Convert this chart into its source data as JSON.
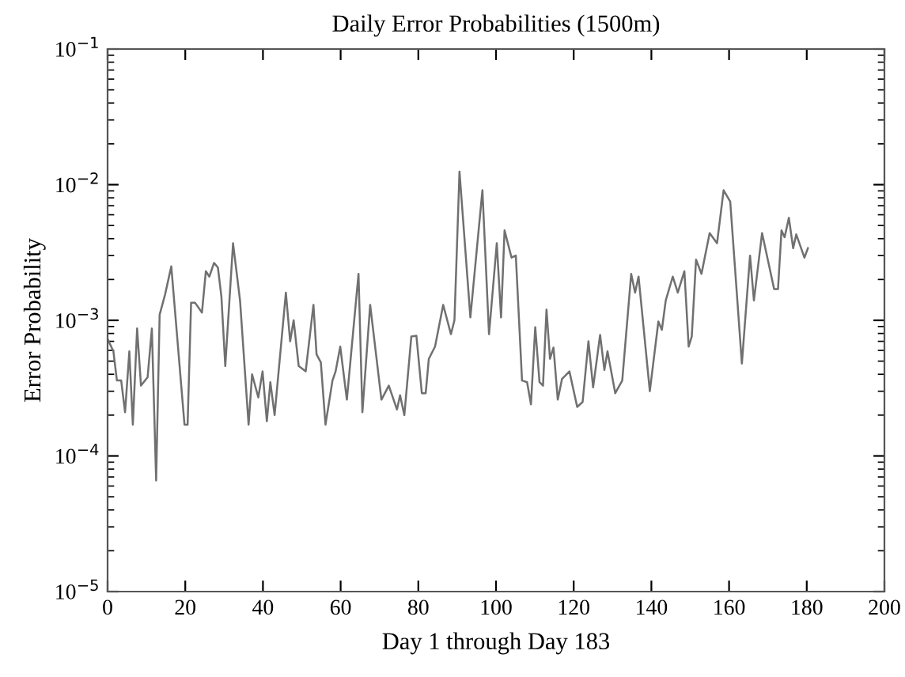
{
  "chart_data": {
    "type": "line",
    "title": "Daily Error Probabilities (1500m)",
    "xlabel": "Day 1 through Day 183",
    "ylabel": "Error Probability",
    "log": "y",
    "grid": false,
    "marker": "none",
    "line_style": "solid",
    "xlim": [
      0,
      200
    ],
    "xticks": [
      0,
      20,
      40,
      60,
      80,
      100,
      120,
      140,
      160,
      180,
      200
    ],
    "ylim": [
      1e-05,
      0.1
    ],
    "yticks": [
      {
        "value": 1e-05,
        "label": "10$^{−5}$"
      },
      {
        "value": 0.0001,
        "label": "10$^{−4}$"
      },
      {
        "value": 0.001,
        "label": "10$^{−3}$"
      },
      {
        "value": 0.01,
        "label": "10$^{−2}$"
      },
      {
        "value": 0.1,
        "label": "10$^{−1}$"
      }
    ],
    "series": [
      {
        "color": "#707070",
        "x": [
          0,
          1.5,
          2.4,
          3.5,
          4.5,
          5.6,
          6.5,
          7.6,
          8.6,
          10.3,
          11.4,
          12.5,
          13.4,
          14.8,
          16.4,
          19.8,
          20.6,
          21.5,
          22.5,
          24.3,
          25.3,
          26.2,
          27.4,
          28.4,
          29.3,
          30.3,
          32.3,
          34.1,
          36.3,
          37.2,
          38.8,
          39.9,
          41.0,
          41.9,
          43.0,
          45.9,
          47.0,
          47.9,
          49.2,
          51.0,
          53.0,
          53.8,
          54.9,
          56.1,
          57.9,
          58.7,
          59.9,
          61.6,
          64.6,
          65.6,
          67.6,
          70.5,
          72.4,
          74.5,
          75.3,
          76.4,
          78.2,
          79.5,
          80.9,
          81.9,
          82.7,
          84.3,
          86.4,
          88.4,
          89.3,
          90.6,
          93.4,
          96.5,
          98.2,
          100.2,
          101.3,
          102.2,
          104.0,
          105.1,
          106.7,
          108.0,
          109.0,
          110.1,
          111.2,
          112.1,
          113.0,
          113.9,
          114.8,
          115.9,
          117.0,
          118.9,
          120.9,
          122.3,
          123.8,
          125.0,
          126.8,
          127.9,
          128.7,
          130.7,
          132.5,
          134.8,
          135.8,
          136.7,
          139.6,
          141.8,
          142.7,
          143.7,
          145.5,
          146.8,
          148.5,
          149.6,
          150.4,
          151.5,
          152.9,
          155.0,
          156.9,
          158.6,
          160.3,
          163.3,
          165.4,
          166.4,
          168.5,
          171.6,
          172.6,
          173.5,
          174.3,
          175.4,
          176.5,
          177.3,
          179.4,
          180.3
        ],
        "values": [
          0.00073,
          0.00059,
          0.00036,
          0.00036,
          0.00021,
          0.00059,
          0.00017,
          0.00087,
          0.00033,
          0.00038,
          0.00087,
          6.6e-05,
          0.0011,
          0.00155,
          0.0025,
          0.00017,
          0.00017,
          0.00135,
          0.00135,
          0.00114,
          0.0023,
          0.0021,
          0.00265,
          0.00245,
          0.0015,
          0.00046,
          0.0037,
          0.0014,
          0.00017,
          0.0004,
          0.00027,
          0.00042,
          0.00018,
          0.00035,
          0.0002,
          0.0016,
          0.0007,
          0.001,
          0.00046,
          0.00042,
          0.0013,
          0.00056,
          0.00049,
          0.00017,
          0.00036,
          0.00042,
          0.00064,
          0.00026,
          0.0022,
          0.00021,
          0.0013,
          0.00026,
          0.00033,
          0.00022,
          0.00028,
          0.0002,
          0.00076,
          0.00077,
          0.00029,
          0.00029,
          0.00052,
          0.00064,
          0.0013,
          0.00079,
          0.001,
          0.0125,
          0.00105,
          0.0091,
          0.00079,
          0.0037,
          0.00105,
          0.0046,
          0.0029,
          0.003,
          0.00036,
          0.00035,
          0.00024,
          0.00089,
          0.00035,
          0.00033,
          0.0012,
          0.00052,
          0.00063,
          0.00026,
          0.00037,
          0.00042,
          0.00023,
          0.00025,
          0.0007,
          0.00032,
          0.00078,
          0.00043,
          0.00059,
          0.00029,
          0.00036,
          0.0022,
          0.0016,
          0.0021,
          0.0003,
          0.00098,
          0.00085,
          0.0014,
          0.0021,
          0.0016,
          0.0023,
          0.00064,
          0.00076,
          0.0028,
          0.0022,
          0.0044,
          0.0037,
          0.0091,
          0.0075,
          0.00048,
          0.003,
          0.0014,
          0.0044,
          0.0017,
          0.0017,
          0.0046,
          0.0041,
          0.0057,
          0.0034,
          0.0043,
          0.0029,
          0.0034
        ]
      }
    ]
  }
}
